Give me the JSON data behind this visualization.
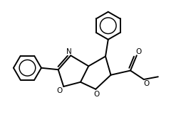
{
  "background_color": "#ffffff",
  "line_color": "#000000",
  "line_width": 1.4,
  "figsize": [
    2.61,
    1.89
  ],
  "dpi": 100,
  "xlim": [
    0,
    10
  ],
  "ylim": [
    0,
    7.5
  ]
}
